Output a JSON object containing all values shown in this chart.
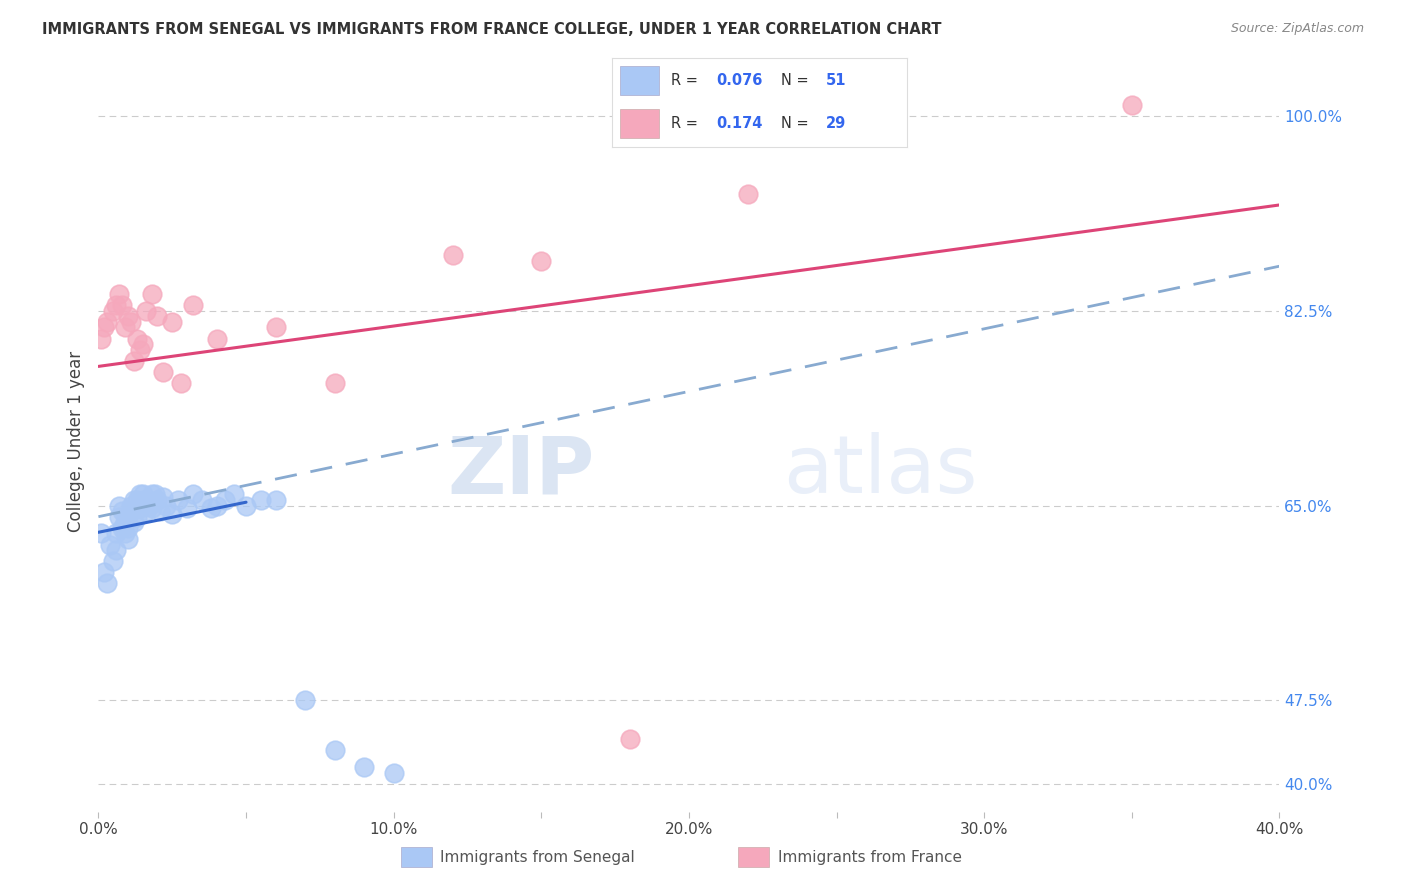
{
  "title": "IMMIGRANTS FROM SENEGAL VS IMMIGRANTS FROM FRANCE COLLEGE, UNDER 1 YEAR CORRELATION CHART",
  "source": "Source: ZipAtlas.com",
  "ylabel": "College, Under 1 year",
  "xlim": [
    0.0,
    0.4
  ],
  "ylim": [
    0.375,
    1.04
  ],
  "xtick_labels": [
    "0.0%",
    "",
    "10.0%",
    "",
    "20.0%",
    "",
    "30.0%",
    "",
    "40.0%"
  ],
  "xtick_vals": [
    0.0,
    0.05,
    0.1,
    0.15,
    0.2,
    0.25,
    0.3,
    0.35,
    0.4
  ],
  "ytick_labels_right": [
    "40.0%",
    "47.5%",
    "65.0%",
    "82.5%",
    "100.0%"
  ],
  "ytick_vals_right": [
    0.4,
    0.475,
    0.65,
    0.825,
    1.0
  ],
  "legend_R_senegal": "0.076",
  "legend_N_senegal": "51",
  "legend_R_france": "0.174",
  "legend_N_france": "29",
  "senegal_color": "#aac8f5",
  "france_color": "#f5a8bc",
  "senegal_line_color": "#3366cc",
  "france_line_color": "#dd4477",
  "dashed_line_color": "#88aad0",
  "watermark_zip": "ZIP",
  "watermark_atlas": "atlas",
  "background_color": "#ffffff",
  "senegal_x": [
    0.001,
    0.002,
    0.003,
    0.004,
    0.005,
    0.006,
    0.006,
    0.007,
    0.007,
    0.008,
    0.008,
    0.009,
    0.009,
    0.01,
    0.01,
    0.01,
    0.011,
    0.011,
    0.012,
    0.012,
    0.013,
    0.013,
    0.014,
    0.014,
    0.015,
    0.015,
    0.016,
    0.017,
    0.018,
    0.018,
    0.019,
    0.02,
    0.021,
    0.022,
    0.023,
    0.025,
    0.027,
    0.03,
    0.032,
    0.035,
    0.038,
    0.04,
    0.043,
    0.046,
    0.05,
    0.055,
    0.06,
    0.07,
    0.08,
    0.09,
    0.1
  ],
  "senegal_y": [
    0.625,
    0.59,
    0.58,
    0.615,
    0.6,
    0.625,
    0.61,
    0.64,
    0.65,
    0.63,
    0.645,
    0.625,
    0.635,
    0.64,
    0.63,
    0.62,
    0.645,
    0.65,
    0.635,
    0.655,
    0.64,
    0.655,
    0.66,
    0.648,
    0.655,
    0.66,
    0.645,
    0.65,
    0.648,
    0.66,
    0.66,
    0.655,
    0.645,
    0.658,
    0.65,
    0.642,
    0.655,
    0.648,
    0.66,
    0.655,
    0.648,
    0.65,
    0.655,
    0.66,
    0.65,
    0.655,
    0.655,
    0.475,
    0.43,
    0.415,
    0.41
  ],
  "france_x": [
    0.001,
    0.002,
    0.003,
    0.005,
    0.006,
    0.007,
    0.008,
    0.009,
    0.01,
    0.011,
    0.012,
    0.013,
    0.014,
    0.015,
    0.016,
    0.018,
    0.02,
    0.022,
    0.025,
    0.028,
    0.032,
    0.04,
    0.06,
    0.08,
    0.12,
    0.15,
    0.18,
    0.22,
    0.35
  ],
  "france_y": [
    0.8,
    0.81,
    0.815,
    0.825,
    0.83,
    0.84,
    0.83,
    0.81,
    0.82,
    0.815,
    0.78,
    0.8,
    0.79,
    0.795,
    0.825,
    0.84,
    0.82,
    0.77,
    0.815,
    0.76,
    0.83,
    0.8,
    0.81,
    0.76,
    0.875,
    0.87,
    0.44,
    0.93,
    1.01
  ],
  "senegal_line_x0": 0.0,
  "senegal_line_x1": 0.05,
  "senegal_line_y0": 0.626,
  "senegal_line_y1": 0.653,
  "france_line_y0": 0.775,
  "france_line_y1": 0.92,
  "dashed_line_y0": 0.64,
  "dashed_line_y1": 0.865
}
